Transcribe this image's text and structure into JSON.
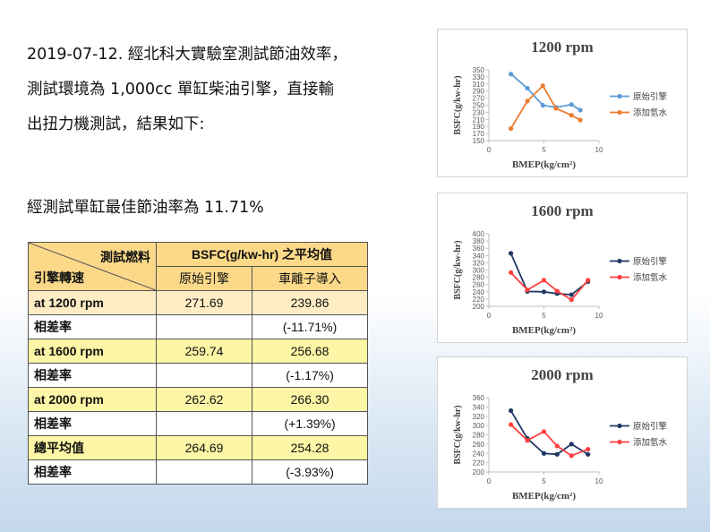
{
  "intro": {
    "line1": "2019-07-12. 經北科大實驗室測試節油效率，",
    "line2": "測試環境為 1,000cc 單缸柴油引擎，直接輸",
    "line3": "出扭力機測試，結果如下:"
  },
  "summary": "經測試單缸最佳節油率為 11.71%",
  "table": {
    "corner_top": "測試燃料",
    "corner_bottom": "引擎轉速",
    "group_header": "BSFC(g/kw-hr) 之平均值",
    "col1": "原始引擎",
    "col2": "車離子導入",
    "rows": [
      {
        "label": "at 1200 rpm",
        "a": "271.69",
        "b": "239.86"
      },
      {
        "label": "相差率",
        "a": "",
        "b": "(-11.71%)"
      },
      {
        "label": "at 1600 rpm",
        "a": "259.74",
        "b": "256.68"
      },
      {
        "label": "相差率",
        "a": "",
        "b": "(-1.17%)"
      },
      {
        "label": "at 2000 rpm",
        "a": "262.62",
        "b": "266.30"
      },
      {
        "label": "相差率",
        "a": "",
        "b": "(+1.39%)"
      },
      {
        "label": "總平均值",
        "a": "264.69",
        "b": "254.28"
      },
      {
        "label": "相差率",
        "a": "",
        "b": "(-3.93%)"
      }
    ]
  },
  "chart_data": [
    {
      "type": "line",
      "title": "1200 rpm",
      "xlabel": "BMEP(kg/cm²)",
      "ylabel": "BSFC(g/kw-hr)",
      "xlim": [
        0,
        10
      ],
      "ylim": [
        150,
        350
      ],
      "xticks": [
        0,
        5,
        10
      ],
      "yticks": [
        150,
        170,
        190,
        210,
        230,
        250,
        270,
        290,
        310,
        330,
        350
      ],
      "legend": "right",
      "series": [
        {
          "name": "原始引擎",
          "color": "#5b9bd5",
          "x": [
            2,
            3.5,
            4.9,
            6.1,
            7.5,
            8.3
          ],
          "y": [
            338,
            298,
            250,
            244,
            252,
            236
          ]
        },
        {
          "name": "添加氫水",
          "color": "#ed7d31",
          "x": [
            2,
            3.5,
            4.9,
            6.1,
            7.5,
            8.3
          ],
          "y": [
            184,
            262,
            305,
            241,
            222,
            208
          ]
        }
      ]
    },
    {
      "type": "line",
      "title": "1600 rpm",
      "xlabel": "BMEP(kg/cm²)",
      "ylabel": "BSFC(g/kw-hr)",
      "xlim": [
        0,
        10
      ],
      "ylim": [
        200,
        400
      ],
      "xticks": [
        0,
        5,
        10
      ],
      "yticks": [
        200,
        220,
        240,
        260,
        280,
        300,
        320,
        340,
        360,
        380,
        400
      ],
      "legend": "right",
      "series": [
        {
          "name": "原始引擎",
          "color": "#1f3864",
          "x": [
            2,
            3.5,
            5,
            6.2,
            7.5,
            9
          ],
          "y": [
            346,
            241,
            240,
            235,
            232,
            268
          ]
        },
        {
          "name": "添加氫水",
          "color": "#ff4040",
          "x": [
            2,
            3.5,
            5,
            6.2,
            7.5,
            9
          ],
          "y": [
            293,
            245,
            272,
            242,
            218,
            272
          ]
        }
      ]
    },
    {
      "type": "line",
      "title": "2000 rpm",
      "xlabel": "BMEP(kg/cm²)",
      "ylabel": "BSFC(g/kw-hr)",
      "xlim": [
        0,
        10
      ],
      "ylim": [
        200,
        360
      ],
      "xticks": [
        0,
        5,
        10
      ],
      "yticks": [
        200,
        220,
        240,
        260,
        280,
        300,
        320,
        340,
        360
      ],
      "legend": "right",
      "series": [
        {
          "name": "原始引擎",
          "color": "#1f3864",
          "x": [
            2,
            3.5,
            5,
            6.2,
            7.5,
            9
          ],
          "y": [
            332,
            272,
            240,
            238,
            260,
            238
          ]
        },
        {
          "name": "添加氫水",
          "color": "#ff4040",
          "x": [
            2,
            3.5,
            5,
            6.2,
            7.5,
            9
          ],
          "y": [
            302,
            268,
            287,
            256,
            235,
            249
          ]
        }
      ]
    }
  ]
}
